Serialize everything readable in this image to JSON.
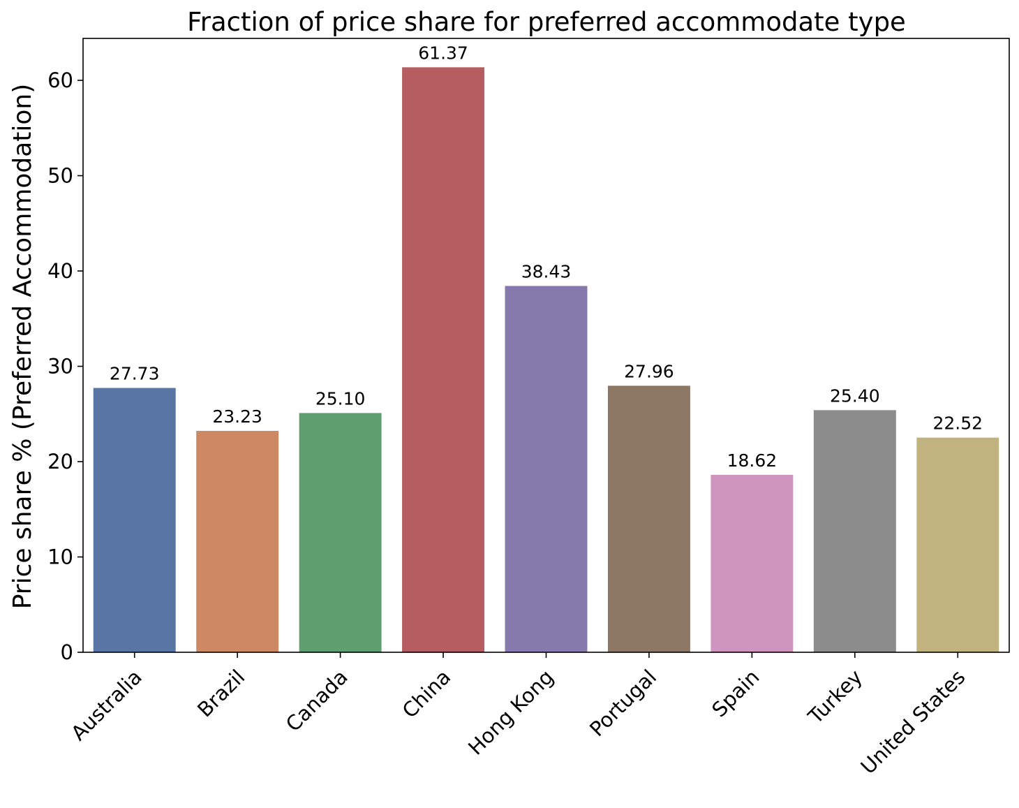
{
  "chart_data": {
    "type": "bar",
    "title": "Fraction of price share for preferred accommodate type",
    "xlabel": "",
    "ylabel": "Price share % (Preferred Accommodation)",
    "categories": [
      "Australia",
      "Brazil",
      "Canada",
      "China",
      "Hong Kong",
      "Portugal",
      "Spain",
      "Turkey",
      "United States"
    ],
    "values": [
      27.73,
      23.23,
      25.1,
      61.37,
      38.43,
      27.96,
      18.62,
      25.4,
      22.52
    ],
    "value_labels": [
      "27.73",
      "23.23",
      "25.10",
      "61.37",
      "38.43",
      "27.96",
      "18.62",
      "25.40",
      "22.52"
    ],
    "colors": [
      "#5975a4",
      "#cc8963",
      "#5f9e6e",
      "#b55d60",
      "#857aab",
      "#8d7866",
      "#d095bf",
      "#8c8c8c",
      "#c1b37f"
    ],
    "ylim": [
      0,
      64.4
    ],
    "yticks": [
      0,
      10,
      20,
      30,
      40,
      50,
      60
    ],
    "grid": false,
    "legend": "none"
  }
}
